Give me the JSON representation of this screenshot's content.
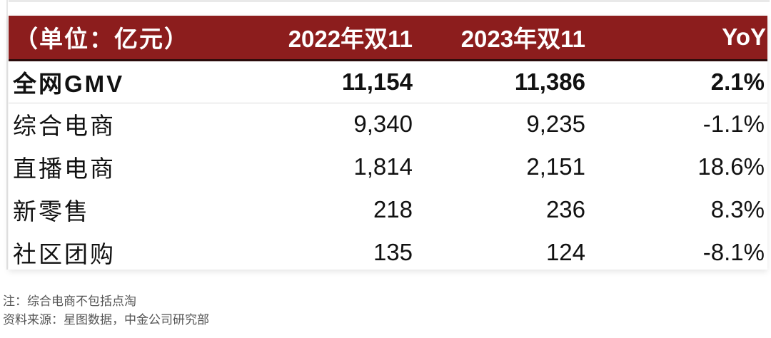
{
  "table": {
    "headers": [
      "（单位：亿元）",
      "2022年双11",
      "2023年双11",
      "YoY"
    ],
    "rows": [
      {
        "name": "全网GMV",
        "y2022": "11,154",
        "y2023": "11,386",
        "yoy": "2.1%"
      },
      {
        "name": "综合电商",
        "y2022": "9,340",
        "y2023": "9,235",
        "yoy": "-1.1%"
      },
      {
        "name": "直播电商",
        "y2022": "1,814",
        "y2023": "2,151",
        "yoy": "18.6%"
      },
      {
        "name": "新零售",
        "y2022": "218",
        "y2023": "236",
        "yoy": "8.3%"
      },
      {
        "name": "社区团购",
        "y2022": "135",
        "y2023": "124",
        "yoy": "-8.1%"
      }
    ]
  },
  "notes": {
    "note": "注：综合电商不包括点淘",
    "source": "资料来源：星图数据，中金公司研究部"
  },
  "colors": {
    "header_bg": "#8c1d1d",
    "header_text": "#ffffff"
  }
}
